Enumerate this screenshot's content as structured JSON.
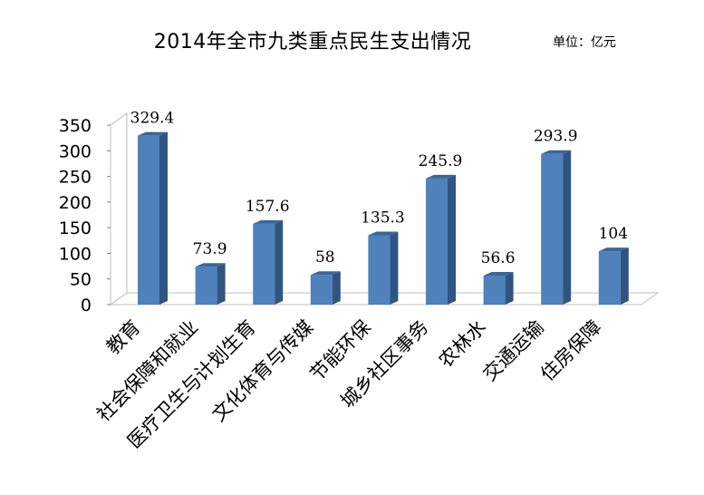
{
  "title": "2014年全市九类重点民生支出情况",
  "unit_label": "单位：亿元",
  "chart_data": {
    "type": "bar",
    "title": "2014年全市九类重点民生支出情况",
    "unit": "单位：亿元",
    "categories": [
      "教育",
      "社会保障和就业",
      "医疗卫生与计划生育",
      "文化体育与传媒",
      "节能环保",
      "城乡社区事务",
      "农林水",
      "交通运输",
      "住房保障"
    ],
    "values": [
      329.4,
      73.9,
      157.6,
      58,
      135.3,
      245.9,
      56.6,
      293.9,
      104
    ],
    "value_labels": [
      "329.4",
      "73.9",
      "157.6",
      "58",
      "135.3",
      "245.9",
      "56.6",
      "293.9",
      "104"
    ],
    "ylim": [
      0,
      350
    ],
    "yticks": [
      "0",
      "50",
      "100",
      "150",
      "200",
      "250",
      "300",
      "350"
    ],
    "grid": false,
    "legend": "none",
    "bar_color": "#4F81BD"
  }
}
